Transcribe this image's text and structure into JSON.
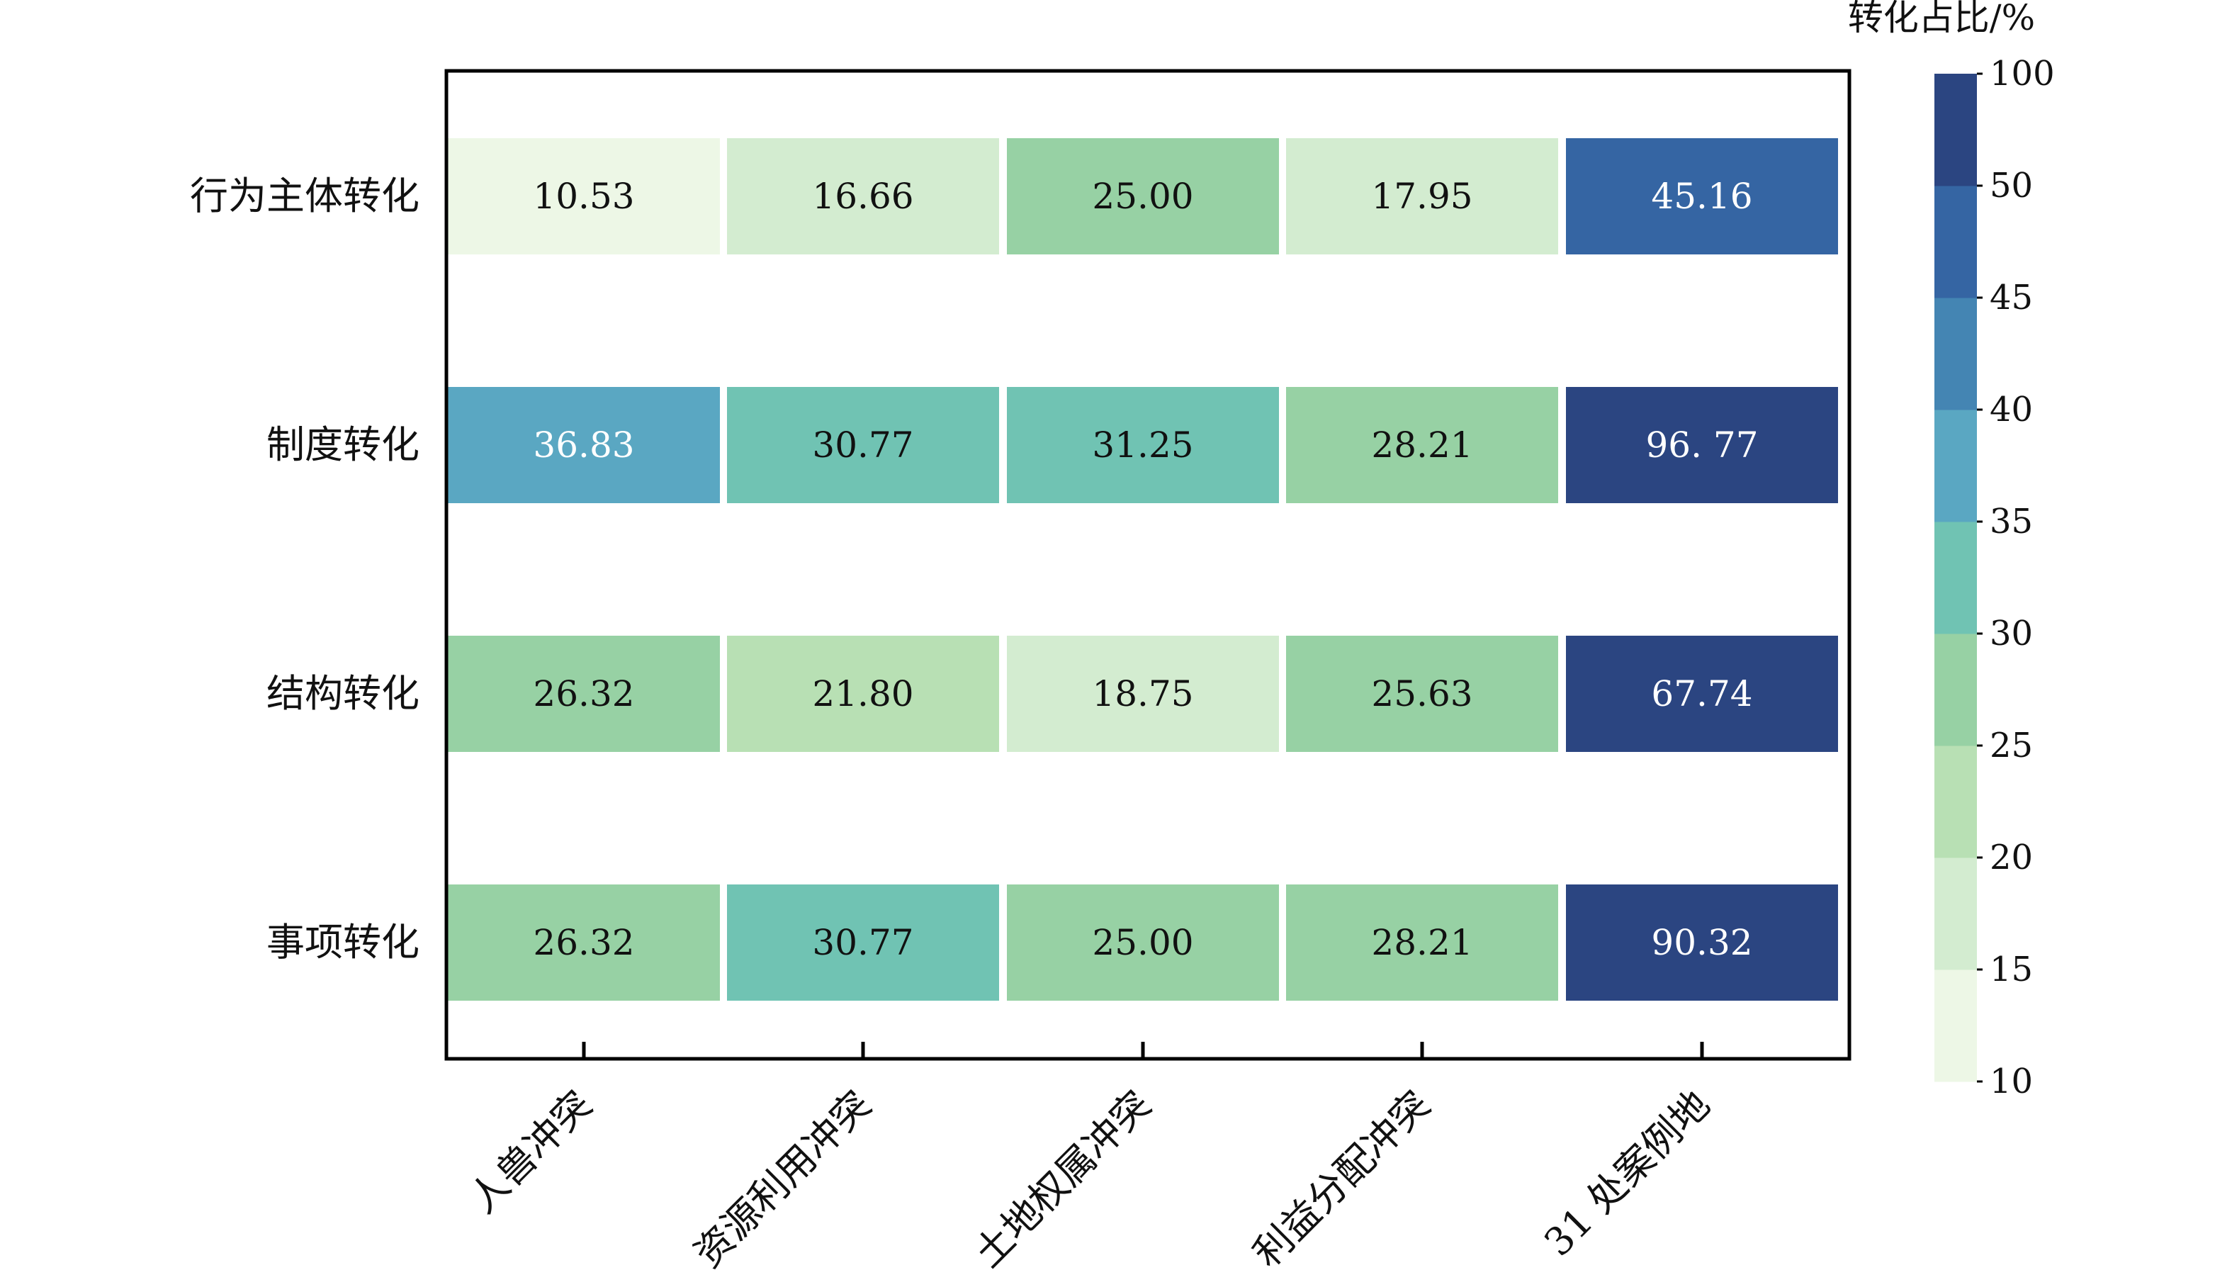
{
  "chart_data": {
    "type": "heatmap",
    "title": "",
    "xlabel": "",
    "ylabel": "",
    "rows": [
      "行为主体转化",
      "制度转化",
      "结构转化",
      "事项转化"
    ],
    "columns": [
      "人兽冲突",
      "资源利用冲突",
      "土地权属冲突",
      "利益分配冲突",
      "31 处案例地"
    ],
    "values": [
      [
        10.53,
        16.66,
        25.0,
        17.95,
        45.16
      ],
      [
        36.83,
        30.77,
        31.25,
        28.21,
        96.77
      ],
      [
        26.32,
        21.8,
        18.75,
        25.63,
        67.74
      ],
      [
        26.32,
        30.77,
        25.0,
        28.21,
        90.32
      ]
    ],
    "cell_labels": [
      [
        "10.53",
        "16.66",
        "25.00",
        "17.95",
        "45.16"
      ],
      [
        "36.83",
        "30.77",
        "31.25",
        "28.21",
        "96. 77"
      ],
      [
        "26.32",
        "21.80",
        "18.75",
        "25.63",
        "67.74"
      ],
      [
        "26.32",
        "30.77",
        "25.00",
        "28.21",
        "90.32"
      ]
    ],
    "colorbar": {
      "title": "转化占比/%",
      "ticks": [
        "10",
        "15",
        "20",
        "25",
        "30",
        "35",
        "40",
        "45",
        "50",
        "100"
      ],
      "bounds": [
        10,
        15,
        20,
        25,
        30,
        35,
        40,
        45,
        50,
        100
      ],
      "colors": [
        "#edf7e6",
        "#d3ecd0",
        "#b8e0b4",
        "#97d1a4",
        "#70c3b3",
        "#5aa7c2",
        "#4485b3",
        "#3565a3",
        "#2b4581"
      ],
      "light_text_color": "#111111",
      "dark_text_color": "#ffffff"
    },
    "grid": false,
    "legend": "right"
  }
}
